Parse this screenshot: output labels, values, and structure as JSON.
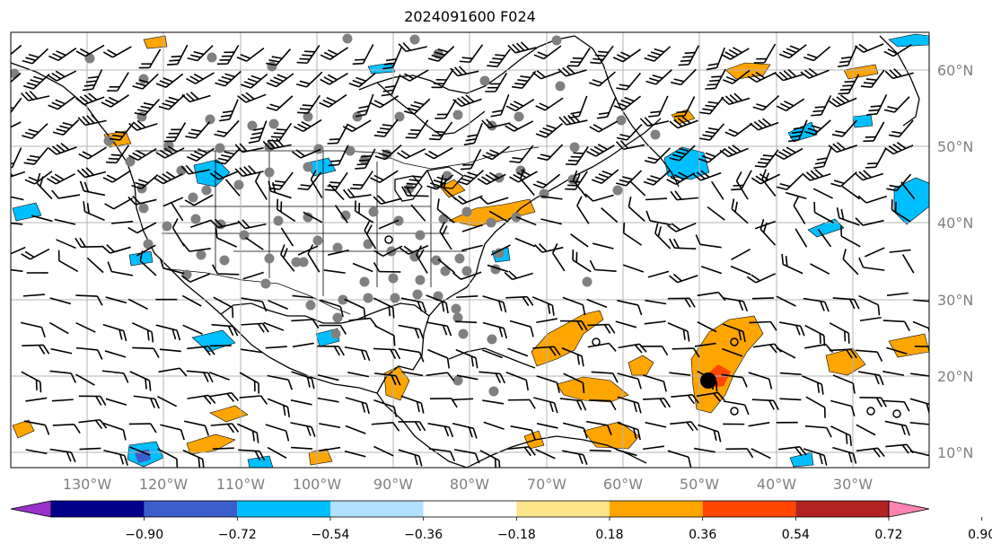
{
  "title": "2024091600 F024",
  "map": {
    "projection": "plate-carree",
    "lon_labels": [
      "130°W",
      "120°W",
      "110°W",
      "100°W",
      "90°W",
      "80°W",
      "70°W",
      "60°W",
      "50°W",
      "40°W",
      "30°W"
    ],
    "lat_labels": [
      "60°N",
      "50°N",
      "40°N",
      "30°N",
      "20°N",
      "10°N"
    ],
    "gridlines": true
  },
  "colorbar": {
    "orientation": "horizontal",
    "extend": "both",
    "tick_labels": [
      "−0.90",
      "−0.72",
      "−0.54",
      "−0.36",
      "−0.18",
      "0.18",
      "0.36",
      "0.54",
      "0.72",
      "0.90"
    ],
    "bin_colors": [
      "#9932cc",
      "#00008b",
      "#3a5fcd",
      "#00bfff",
      "#b0e2ff",
      "#ffffff",
      "#ffe58a",
      "#ffa500",
      "#ff4500",
      "#b22222",
      "#ff85b0"
    ]
  },
  "legend_symbols": {
    "positive_field_color": "#ffa500",
    "negative_field_color": "#00bfff",
    "gray_dot_color": "#808080",
    "barb_color": "#000000"
  }
}
